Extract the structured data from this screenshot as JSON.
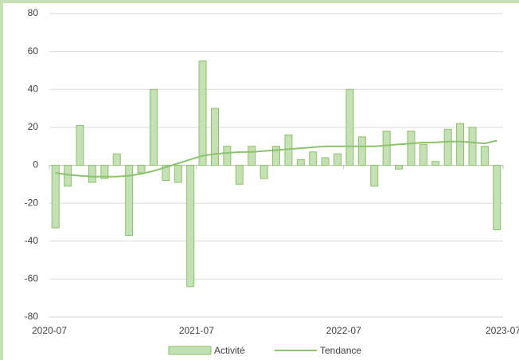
{
  "chart_data": {
    "type": "bar",
    "categories": [
      "2020-07",
      null,
      null,
      null,
      null,
      null,
      null,
      null,
      null,
      null,
      null,
      null,
      "2021-07",
      null,
      null,
      null,
      null,
      null,
      null,
      null,
      null,
      null,
      null,
      null,
      "2022-07",
      null,
      null,
      null,
      null,
      null,
      null,
      null,
      null,
      null,
      null,
      null,
      "2023-07"
    ],
    "series": [
      {
        "name": "Activité",
        "type": "bar",
        "color": "#c5e0b4",
        "values": [
          -33,
          -11,
          21,
          -9,
          -7,
          6,
          -37,
          -4,
          40,
          -8,
          -9,
          -64,
          55,
          30,
          10,
          -10,
          10,
          -7,
          10,
          16,
          3,
          7,
          4,
          6,
          40,
          15,
          -11,
          18,
          -2,
          18,
          11,
          2,
          19,
          22,
          20,
          10,
          -34
        ]
      },
      {
        "name": "Tendance",
        "type": "line",
        "color": "#8dc26f",
        "values": [
          -4,
          -5,
          -5.5,
          -6,
          -6,
          -6,
          -5.5,
          -4.5,
          -3,
          -1,
          1,
          3,
          5,
          6,
          6.5,
          7,
          7,
          7.5,
          8,
          8.5,
          9,
          9.5,
          10,
          10,
          10,
          10,
          10,
          10.5,
          11,
          11.5,
          12,
          12,
          12.5,
          12.5,
          12,
          11.5,
          13
        ]
      }
    ],
    "ylim": [
      -80,
      80
    ],
    "yticks": [
      -80,
      -60,
      -40,
      -20,
      0,
      20,
      40,
      60,
      80
    ],
    "grid": true
  }
}
